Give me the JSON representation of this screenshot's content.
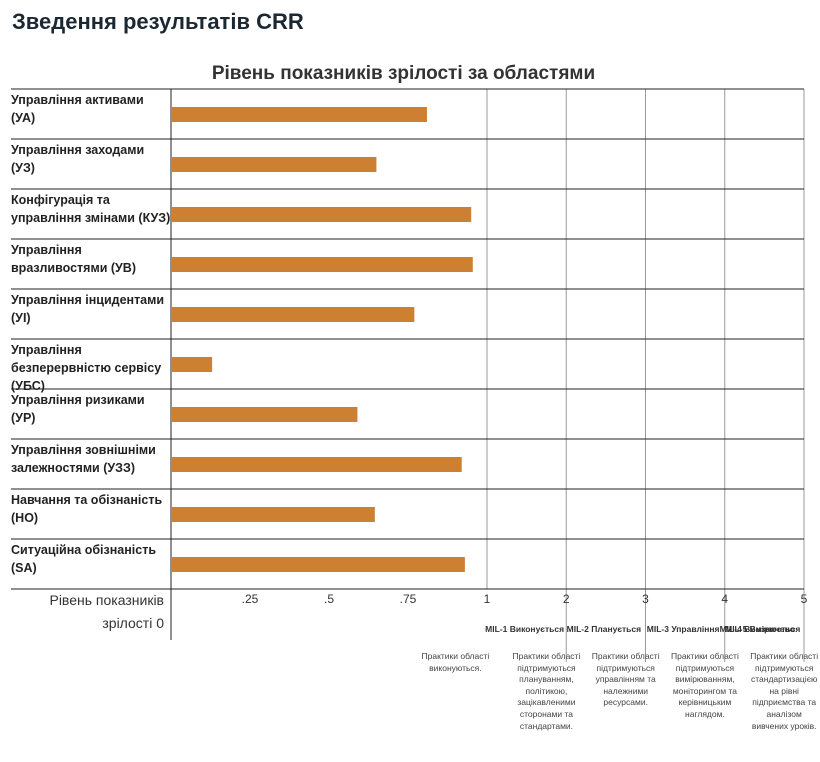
{
  "page": {
    "title": "Зведення результатів CRR"
  },
  "chart_data": {
    "type": "bar",
    "orientation": "horizontal",
    "title": "Рівень показників зрілості за областями",
    "ylabel": "Рівень показників зрілості",
    "categories": [
      "Управління активами (УА)",
      "Управління заходами (УЗ)",
      "Конфігурація та управління змінами (КУЗ)",
      "Управління вразливостями (УВ)",
      "Управління інцидентами (УІ)",
      "Управління безперервністю сервісу (УБС)",
      "Управління ризиками (УР)",
      "Управління зовнішніми залежностями (УЗЗ)",
      "Навчання та обізнаність (НО)",
      "Ситуаційна обізнаність (SA)"
    ],
    "values": [
      0.81,
      0.65,
      0.95,
      0.955,
      0.77,
      0.13,
      0.59,
      0.92,
      0.645,
      0.93
    ],
    "bar_color": "#cd7f32",
    "xlim": [
      0,
      5
    ],
    "ticks": [
      {
        "value": 0,
        "label": "0"
      },
      {
        "value": 0.25,
        "label": ".25"
      },
      {
        "value": 0.5,
        "label": ".5"
      },
      {
        "value": 0.75,
        "label": ".75"
      },
      {
        "value": 1,
        "label": "1"
      },
      {
        "value": 2,
        "label": "2"
      },
      {
        "value": 3,
        "label": "3"
      },
      {
        "value": 4,
        "label": "4"
      },
      {
        "value": 5,
        "label": "5"
      }
    ],
    "mil_levels": [
      {
        "title": "MIL-1 Виконується",
        "description": "Практики області виконуються."
      },
      {
        "title": "MIL-2 Планується",
        "description": "Практики області підтримуються плануванням, політикою, зацікавленими сторонами та стандартами."
      },
      {
        "title": "MIL-3 Управління",
        "description": "Практики області підтримуються управлінням та належними ресурсами."
      },
      {
        "title": "MIL-4 Вимірюється",
        "description": "Практики області підтримуються вимірюванням, моніторингом та керівницьким наглядом."
      },
      {
        "title": "MIL-5 Визначено",
        "description": "Практики області підтримуються стандартизацією на рівні підприємства та аналізом вивчених уроків."
      }
    ]
  }
}
